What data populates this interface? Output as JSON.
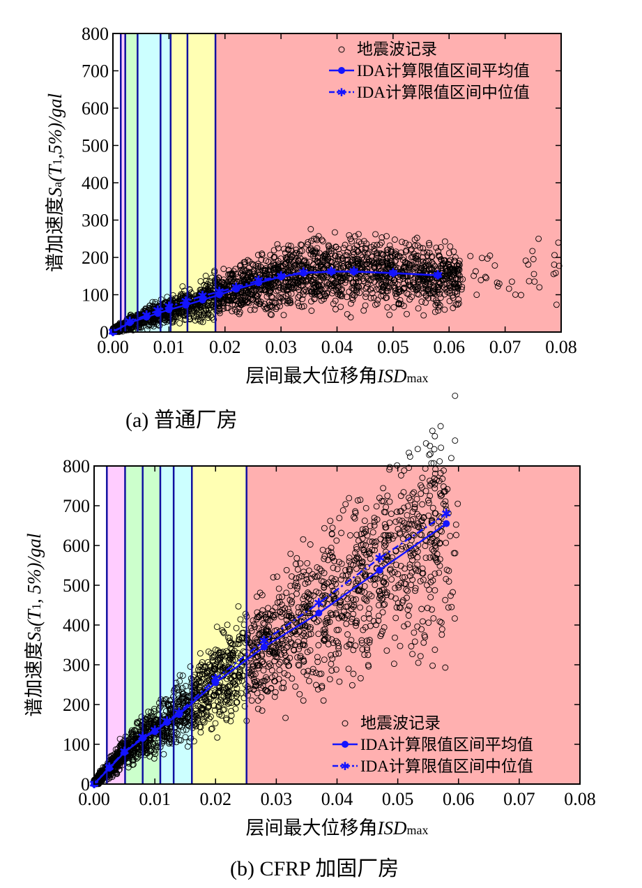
{
  "chart_data": [
    {
      "type": "scatter",
      "caption": "(a)  普通厂房",
      "xlabel_main": "层间最大位移角",
      "xlabel_italic": "ISD",
      "xlabel_sub": "max",
      "ylabel_main": "谱加速度",
      "ylabel_italic": "S",
      "ylabel_sub": "a",
      "ylabel_rest": "(T",
      "ylabel_sub2": "1",
      "ylabel_tail": ",5%)/gal",
      "xlim": [
        0,
        0.08
      ],
      "ylim": [
        0,
        800
      ],
      "xticks": [
        "0.00",
        "0.01",
        "0.02",
        "0.03",
        "0.04",
        "0.05",
        "0.06",
        "0.07",
        "0.08"
      ],
      "yticks": [
        "0",
        "100",
        "200",
        "300",
        "400",
        "500",
        "600",
        "700",
        "800"
      ],
      "legend_position": "top-right",
      "legend": [
        "地震波记录",
        "IDA计算限值区间平均值",
        "IDA计算限值区间中位值"
      ],
      "limit_lines": [
        0.0014,
        0.0022,
        0.0044,
        0.0085,
        0.0103,
        0.0133,
        0.0183
      ],
      "zone_colors": [
        "#ffffff",
        "#ffccff",
        "#ccffcc",
        "#ccffff",
        "#ccffff",
        "#ffffb3",
        "#ffffb3",
        "#ffb0b0"
      ],
      "limit_line_color": "#1010a0",
      "series_color": "#1414ff",
      "mean": {
        "x": [
          0,
          0.003,
          0.006,
          0.008,
          0.01,
          0.013,
          0.016,
          0.019,
          0.022,
          0.026,
          0.03,
          0.034,
          0.039,
          0.043,
          0.05,
          0.058
        ],
        "y": [
          0,
          25,
          40,
          50,
          60,
          72,
          86,
          100,
          115,
          132,
          148,
          158,
          162,
          162,
          158,
          152
        ]
      },
      "median": {
        "x": [
          0,
          0.003,
          0.006,
          0.008,
          0.01,
          0.013,
          0.016,
          0.019,
          0.022,
          0.026,
          0.03,
          0.034,
          0.039,
          0.043,
          0.05,
          0.058
        ],
        "y": [
          0,
          28,
          45,
          58,
          68,
          82,
          97,
          108,
          120,
          138,
          150,
          160,
          162,
          163,
          158,
          152
        ]
      }
    },
    {
      "type": "scatter",
      "caption": "(b) CFRP 加固厂房",
      "xlabel_main": "层间最大位移角",
      "xlabel_italic": "ISD",
      "xlabel_sub": "max",
      "ylabel_main": "谱加速度",
      "ylabel_italic": "S",
      "ylabel_sub": "a",
      "ylabel_rest": "(T",
      "ylabel_sub2": "1",
      "ylabel_tail": ", 5%)/gal",
      "xlim": [
        0,
        0.08
      ],
      "ylim": [
        0,
        800
      ],
      "xticks": [
        "0.00",
        "0.01",
        "0.02",
        "0.03",
        "0.04",
        "0.05",
        "0.06",
        "0.07",
        "0.08"
      ],
      "yticks": [
        "0",
        "100",
        "200",
        "300",
        "400",
        "500",
        "600",
        "700",
        "800"
      ],
      "legend_position": "bottom-right",
      "legend": [
        "地震波记录",
        "IDA计算限值区间平均值",
        "IDA计算限值区间中位值"
      ],
      "limit_lines": [
        0.0021,
        0.0051,
        0.008,
        0.0109,
        0.0131,
        0.0161,
        0.0251
      ],
      "zone_colors": [
        "#ffffff",
        "#ffccff",
        "#ccffcc",
        "#ccffcc",
        "#ccffff",
        "#ccffff",
        "#ffffb3",
        "#ffb0b0"
      ],
      "limit_line_color": "#1010a0",
      "series_color": "#1414ff",
      "mean": {
        "x": [
          0,
          0.0025,
          0.005,
          0.008,
          0.01,
          0.012,
          0.014,
          0.02,
          0.028,
          0.037,
          0.047,
          0.058
        ],
        "y": [
          0,
          40,
          80,
          115,
          132,
          155,
          175,
          255,
          345,
          430,
          538,
          655
        ]
      },
      "median": {
        "x": [
          0,
          0.0025,
          0.005,
          0.008,
          0.01,
          0.012,
          0.014,
          0.02,
          0.028,
          0.037,
          0.047,
          0.058
        ],
        "y": [
          0,
          42,
          82,
          118,
          135,
          158,
          180,
          265,
          360,
          455,
          568,
          680
        ]
      }
    }
  ]
}
